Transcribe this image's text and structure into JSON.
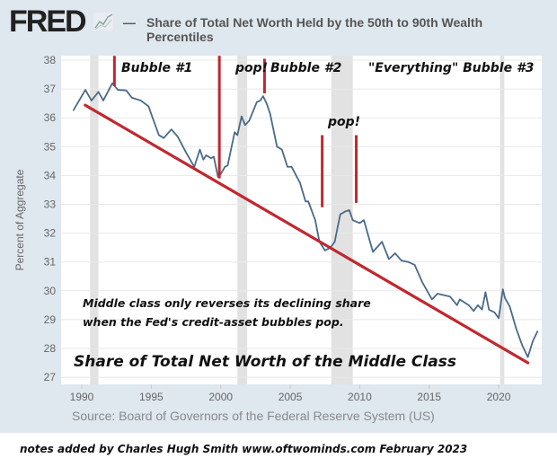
{
  "header": {
    "logo": "FRED",
    "legend_dash": "—",
    "title_line1": "Share of Total Net Worth Held by the 50th to 90th Wealth",
    "title_line2": "Percentiles"
  },
  "source": "Source: Board of Governors of the Federal Reserve System (US)",
  "footer": "notes added by Charles Hugh Smith   www.oftwominds.com   February 2023",
  "annotations": {
    "bubble1": "Bubble #1",
    "pop1": "pop!",
    "bubble2": "Bubble #2",
    "bubble3": "\"Everything\" Bubble #3",
    "pop2": "pop!",
    "note_line1": "Middle class only reverses its declining share",
    "note_line2": "when the Fed's credit-asset bubbles pop.",
    "headline": "Share of Total Net Worth of the Middle Class"
  },
  "colors": {
    "series": "#4a6a88",
    "trend": "#c0282f",
    "marker": "#c0282f",
    "recession": "#e2e2e2",
    "background": "#dfe7ef"
  },
  "chart_data": {
    "type": "line",
    "title": "Share of Total Net Worth Held by the 50th to 90th Wealth Percentiles",
    "xlabel": "",
    "ylabel": "Percent of Aggregate",
    "xlim": [
      1988.6,
      2023.2
    ],
    "ylim": [
      27,
      38
    ],
    "x_ticks": [
      "1990",
      "1995",
      "2000",
      "2005",
      "2010",
      "2015",
      "2020"
    ],
    "y_ticks": [
      "27",
      "28",
      "29",
      "30",
      "31",
      "32",
      "33",
      "34",
      "35",
      "36",
      "37",
      "38"
    ],
    "grid": true,
    "recessions": [
      [
        1990.6,
        1991.2
      ],
      [
        2001.2,
        2001.9
      ],
      [
        2007.95,
        2009.5
      ],
      [
        2020.1,
        2020.4
      ]
    ],
    "series": [
      {
        "name": "Share of Total Net Worth Held by the 50th to 90th Wealth Percentiles",
        "points": [
          [
            1989.4,
            36.26
          ],
          [
            1990.26,
            36.97
          ],
          [
            1990.7,
            36.6
          ],
          [
            1991.2,
            36.9
          ],
          [
            1991.55,
            36.6
          ],
          [
            1992.2,
            37.2
          ],
          [
            1992.6,
            36.97
          ],
          [
            1993.2,
            36.95
          ],
          [
            1993.6,
            36.7
          ],
          [
            1994.25,
            36.6
          ],
          [
            1994.8,
            36.4
          ],
          [
            1995.55,
            35.4
          ],
          [
            1995.9,
            35.3
          ],
          [
            1996.45,
            35.6
          ],
          [
            1996.9,
            35.35
          ],
          [
            1997.5,
            34.8
          ],
          [
            1998.1,
            34.3
          ],
          [
            1998.5,
            34.9
          ],
          [
            1998.75,
            34.55
          ],
          [
            1998.95,
            34.7
          ],
          [
            1999.3,
            34.6
          ],
          [
            1999.5,
            34.65
          ],
          [
            1999.8,
            33.95
          ],
          [
            2000.0,
            34.05
          ],
          [
            2000.3,
            34.3
          ],
          [
            2000.5,
            34.35
          ],
          [
            2001.0,
            35.5
          ],
          [
            2001.2,
            35.4
          ],
          [
            2001.5,
            36.05
          ],
          [
            2001.75,
            35.75
          ],
          [
            2002.05,
            35.9
          ],
          [
            2002.6,
            36.55
          ],
          [
            2002.85,
            36.6
          ],
          [
            2003.05,
            36.75
          ],
          [
            2003.3,
            36.5
          ],
          [
            2003.55,
            36.15
          ],
          [
            2004.05,
            35.0
          ],
          [
            2004.4,
            34.9
          ],
          [
            2004.8,
            34.3
          ],
          [
            2005.1,
            34.3
          ],
          [
            2005.7,
            33.75
          ],
          [
            2006.1,
            33.1
          ],
          [
            2006.3,
            33.1
          ],
          [
            2006.8,
            32.45
          ],
          [
            2007.1,
            31.7
          ],
          [
            2007.5,
            31.4
          ],
          [
            2007.9,
            31.5
          ],
          [
            2008.2,
            31.7
          ],
          [
            2008.6,
            32.65
          ],
          [
            2008.95,
            32.75
          ],
          [
            2009.25,
            32.8
          ],
          [
            2009.5,
            32.45
          ],
          [
            2010.0,
            32.35
          ],
          [
            2010.3,
            32.45
          ],
          [
            2010.95,
            31.35
          ],
          [
            2011.6,
            31.7
          ],
          [
            2012.1,
            31.1
          ],
          [
            2012.55,
            31.3
          ],
          [
            2013.0,
            31.05
          ],
          [
            2013.5,
            31.0
          ],
          [
            2013.95,
            30.9
          ],
          [
            2014.5,
            30.3
          ],
          [
            2015.2,
            29.7
          ],
          [
            2015.6,
            29.9
          ],
          [
            2016.5,
            29.8
          ],
          [
            2017.0,
            29.5
          ],
          [
            2017.2,
            29.7
          ],
          [
            2017.85,
            29.5
          ],
          [
            2018.2,
            29.3
          ],
          [
            2018.5,
            29.5
          ],
          [
            2018.8,
            29.35
          ],
          [
            2019.05,
            29.95
          ],
          [
            2019.3,
            29.35
          ],
          [
            2019.7,
            29.25
          ],
          [
            2020.0,
            29.05
          ],
          [
            2020.3,
            30.05
          ],
          [
            2020.45,
            29.75
          ],
          [
            2020.8,
            29.45
          ],
          [
            2021.25,
            28.7
          ],
          [
            2021.7,
            28.1
          ],
          [
            2022.1,
            27.7
          ],
          [
            2022.45,
            28.25
          ],
          [
            2022.8,
            28.6
          ]
        ]
      }
    ],
    "trend_line": [
      [
        1990.25,
        36.44
      ],
      [
        2022.1,
        27.5
      ]
    ],
    "markers": [
      {
        "year": 1992.35,
        "from": 37.1,
        "to": 38.15
      },
      {
        "year": 1999.9,
        "from": 33.9,
        "to": 38.15
      },
      {
        "year": 2003.15,
        "from": 36.85,
        "to": 38.05
      },
      {
        "year": 2007.3,
        "from": 32.9,
        "to": 35.4
      },
      {
        "year": 2009.75,
        "from": 33.05,
        "to": 35.4
      }
    ]
  }
}
